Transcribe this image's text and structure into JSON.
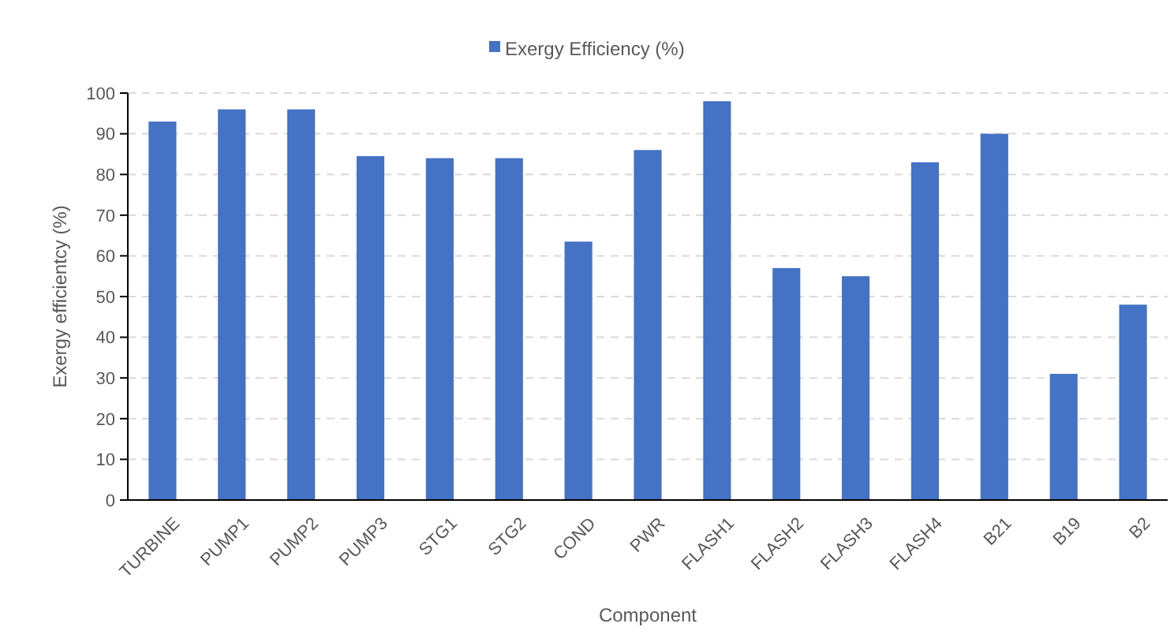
{
  "chart_data": {
    "type": "bar",
    "xlabel": "Component",
    "ylabel": "Exergy efficientcy  (%)",
    "categories": [
      "TURBINE",
      "PUMP1",
      "PUMP2",
      "PUMP3",
      "STG1",
      "STG2",
      "COND",
      "PWR",
      "FLASH1",
      "FLASH2",
      "FLASH3",
      "FLASH4",
      "B21",
      "B19",
      "B2"
    ],
    "series": [
      {
        "name": "Exergy Efficiency (%)",
        "color": "#4472c4",
        "values": [
          93,
          96,
          96,
          84.5,
          84,
          84,
          63.5,
          86,
          98,
          57,
          55,
          83,
          90,
          31,
          48
        ]
      }
    ],
    "ylim": [
      0,
      100
    ],
    "yticks": [
      0,
      10,
      20,
      30,
      40,
      50,
      60,
      70,
      80,
      90,
      100
    ],
    "grid": "y",
    "legend": "top"
  }
}
